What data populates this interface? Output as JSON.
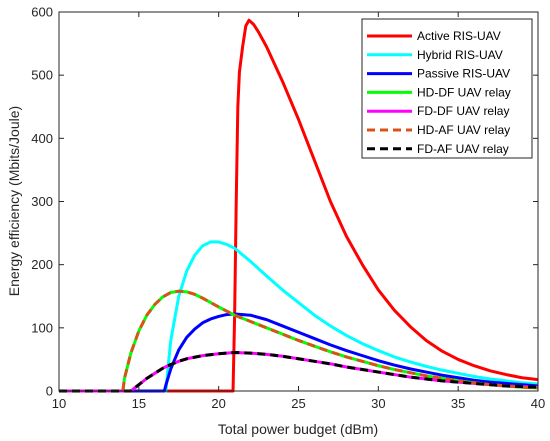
{
  "chart_data": {
    "type": "line",
    "xlabel": "Total power budget (dBm)",
    "ylabel": "Energy efficiency (Mbits/Joule)",
    "xlim": [
      10,
      40
    ],
    "ylim": [
      0,
      600
    ],
    "xticks": [
      10,
      15,
      20,
      25,
      30,
      35,
      40
    ],
    "yticks": [
      0,
      100,
      200,
      300,
      400,
      500,
      600
    ],
    "grid": false,
    "legend_position": "top-right",
    "series": [
      {
        "name": "Active RIS-UAV",
        "color": "#ff0000",
        "dashed": false,
        "points": [
          [
            10,
            0
          ],
          [
            20.9,
            0
          ],
          [
            21.0,
            120
          ],
          [
            21.1,
            300
          ],
          [
            21.2,
            450
          ],
          [
            21.3,
            505
          ],
          [
            21.5,
            545
          ],
          [
            21.7,
            578
          ],
          [
            21.9,
            587
          ],
          [
            22.2,
            580
          ],
          [
            22.5,
            568
          ],
          [
            23,
            545
          ],
          [
            24,
            490
          ],
          [
            25,
            430
          ],
          [
            26,
            365
          ],
          [
            27,
            300
          ],
          [
            28,
            245
          ],
          [
            29,
            200
          ],
          [
            30,
            160
          ],
          [
            31,
            128
          ],
          [
            32,
            102
          ],
          [
            33,
            80
          ],
          [
            34,
            63
          ],
          [
            35,
            50
          ],
          [
            36,
            40
          ],
          [
            37,
            32
          ],
          [
            38,
            26
          ],
          [
            39,
            21
          ],
          [
            40,
            18
          ]
        ]
      },
      {
        "name": "Hybrid RIS-UAV",
        "color": "#00ffff",
        "dashed": false,
        "points": [
          [
            10,
            0
          ],
          [
            16.7,
            0
          ],
          [
            16.8,
            30
          ],
          [
            17,
            80
          ],
          [
            17.5,
            150
          ],
          [
            18,
            190
          ],
          [
            18.5,
            215
          ],
          [
            19,
            230
          ],
          [
            19.5,
            236
          ],
          [
            20,
            236
          ],
          [
            20.5,
            232
          ],
          [
            21,
            226
          ],
          [
            22,
            205
          ],
          [
            23,
            182
          ],
          [
            24,
            160
          ],
          [
            25,
            140
          ],
          [
            26,
            120
          ],
          [
            27,
            103
          ],
          [
            28,
            88
          ],
          [
            29,
            75
          ],
          [
            30,
            64
          ],
          [
            31,
            54
          ],
          [
            32,
            46
          ],
          [
            33,
            39
          ],
          [
            34,
            33
          ],
          [
            35,
            28
          ],
          [
            36,
            23
          ],
          [
            37,
            19
          ],
          [
            38,
            16
          ],
          [
            39,
            13
          ],
          [
            40,
            11
          ]
        ]
      },
      {
        "name": "Passive RIS-UAV",
        "color": "#0000ff",
        "dashed": false,
        "points": [
          [
            10,
            0
          ],
          [
            16.6,
            0
          ],
          [
            16.7,
            10
          ],
          [
            17,
            35
          ],
          [
            17.5,
            65
          ],
          [
            18,
            85
          ],
          [
            18.5,
            98
          ],
          [
            19,
            108
          ],
          [
            19.5,
            114
          ],
          [
            20,
            118
          ],
          [
            20.5,
            121
          ],
          [
            21,
            122
          ],
          [
            21.5,
            121
          ],
          [
            22,
            120
          ],
          [
            23,
            113
          ],
          [
            24,
            103
          ],
          [
            25,
            93
          ],
          [
            26,
            83
          ],
          [
            27,
            73
          ],
          [
            28,
            64
          ],
          [
            29,
            56
          ],
          [
            30,
            48
          ],
          [
            31,
            41
          ],
          [
            32,
            35
          ],
          [
            33,
            30
          ],
          [
            34,
            25
          ],
          [
            35,
            21
          ],
          [
            36,
            17
          ],
          [
            37,
            14
          ],
          [
            38,
            12
          ],
          [
            39,
            10
          ],
          [
            40,
            8
          ]
        ]
      },
      {
        "name": "HD-DF UAV relay",
        "color": "#00ff00",
        "dashed": false,
        "points": [
          [
            10,
            0
          ],
          [
            14.0,
            0
          ],
          [
            14.1,
            20
          ],
          [
            14.5,
            60
          ],
          [
            15,
            95
          ],
          [
            15.5,
            120
          ],
          [
            16,
            137
          ],
          [
            16.5,
            149
          ],
          [
            17,
            156
          ],
          [
            17.5,
            158
          ],
          [
            18,
            157
          ],
          [
            18.5,
            153
          ],
          [
            19,
            147
          ],
          [
            20,
            133
          ],
          [
            21,
            120
          ],
          [
            22,
            110
          ],
          [
            23,
            100
          ],
          [
            24,
            90
          ],
          [
            25,
            80
          ],
          [
            26,
            71
          ],
          [
            27,
            62
          ],
          [
            28,
            54
          ],
          [
            29,
            47
          ],
          [
            30,
            40
          ],
          [
            31,
            34
          ],
          [
            32,
            29
          ],
          [
            33,
            24
          ],
          [
            34,
            20
          ],
          [
            35,
            16
          ],
          [
            36,
            13
          ],
          [
            37,
            10
          ],
          [
            38,
            8
          ],
          [
            39,
            6
          ],
          [
            40,
            5
          ]
        ]
      },
      {
        "name": "FD-DF UAV relay",
        "color": "#ff00ff",
        "dashed": false,
        "points": [
          [
            10,
            0
          ],
          [
            14.5,
            0
          ],
          [
            14.7,
            4
          ],
          [
            15,
            10
          ],
          [
            15.5,
            20
          ],
          [
            16,
            28
          ],
          [
            16.5,
            36
          ],
          [
            17,
            42
          ],
          [
            17.5,
            47
          ],
          [
            18,
            51
          ],
          [
            19,
            56
          ],
          [
            20,
            59
          ],
          [
            21,
            61
          ],
          [
            22,
            60
          ],
          [
            23,
            58
          ],
          [
            24,
            55
          ],
          [
            25,
            51
          ],
          [
            26,
            47
          ],
          [
            27,
            43
          ],
          [
            28,
            38
          ],
          [
            29,
            34
          ],
          [
            30,
            30
          ],
          [
            31,
            26
          ],
          [
            32,
            22
          ],
          [
            33,
            19
          ],
          [
            34,
            16
          ],
          [
            35,
            14
          ],
          [
            36,
            12
          ],
          [
            37,
            10
          ],
          [
            38,
            8
          ],
          [
            39,
            7
          ],
          [
            40,
            6
          ]
        ]
      },
      {
        "name": "HD-AF UAV relay",
        "color": "#d95319",
        "dashed": true,
        "points": [
          [
            10,
            0
          ],
          [
            14.0,
            0
          ],
          [
            14.1,
            20
          ],
          [
            14.5,
            60
          ],
          [
            15,
            95
          ],
          [
            15.5,
            120
          ],
          [
            16,
            137
          ],
          [
            16.5,
            149
          ],
          [
            17,
            156
          ],
          [
            17.5,
            158
          ],
          [
            18,
            157
          ],
          [
            18.5,
            153
          ],
          [
            19,
            147
          ],
          [
            20,
            133
          ],
          [
            21,
            120
          ],
          [
            22,
            110
          ],
          [
            23,
            100
          ],
          [
            24,
            90
          ],
          [
            25,
            80
          ],
          [
            26,
            71
          ],
          [
            27,
            62
          ],
          [
            28,
            54
          ],
          [
            29,
            47
          ],
          [
            30,
            40
          ],
          [
            31,
            34
          ],
          [
            32,
            29
          ],
          [
            33,
            24
          ],
          [
            34,
            20
          ],
          [
            35,
            16
          ],
          [
            36,
            13
          ],
          [
            37,
            10
          ],
          [
            38,
            8
          ],
          [
            39,
            6
          ],
          [
            40,
            5
          ]
        ]
      },
      {
        "name": "FD-AF UAV relay",
        "color": "#000000",
        "dashed": true,
        "points": [
          [
            10,
            0
          ],
          [
            14.5,
            0
          ],
          [
            14.7,
            4
          ],
          [
            15,
            10
          ],
          [
            15.5,
            20
          ],
          [
            16,
            28
          ],
          [
            16.5,
            36
          ],
          [
            17,
            42
          ],
          [
            17.5,
            47
          ],
          [
            18,
            51
          ],
          [
            19,
            56
          ],
          [
            20,
            59
          ],
          [
            21,
            61
          ],
          [
            22,
            60
          ],
          [
            23,
            58
          ],
          [
            24,
            55
          ],
          [
            25,
            51
          ],
          [
            26,
            47
          ],
          [
            27,
            43
          ],
          [
            28,
            38
          ],
          [
            29,
            34
          ],
          [
            30,
            30
          ],
          [
            31,
            26
          ],
          [
            32,
            22
          ],
          [
            33,
            19
          ],
          [
            34,
            16
          ],
          [
            35,
            14
          ],
          [
            36,
            12
          ],
          [
            37,
            10
          ],
          [
            38,
            8
          ],
          [
            39,
            7
          ],
          [
            40,
            6
          ]
        ]
      }
    ]
  }
}
